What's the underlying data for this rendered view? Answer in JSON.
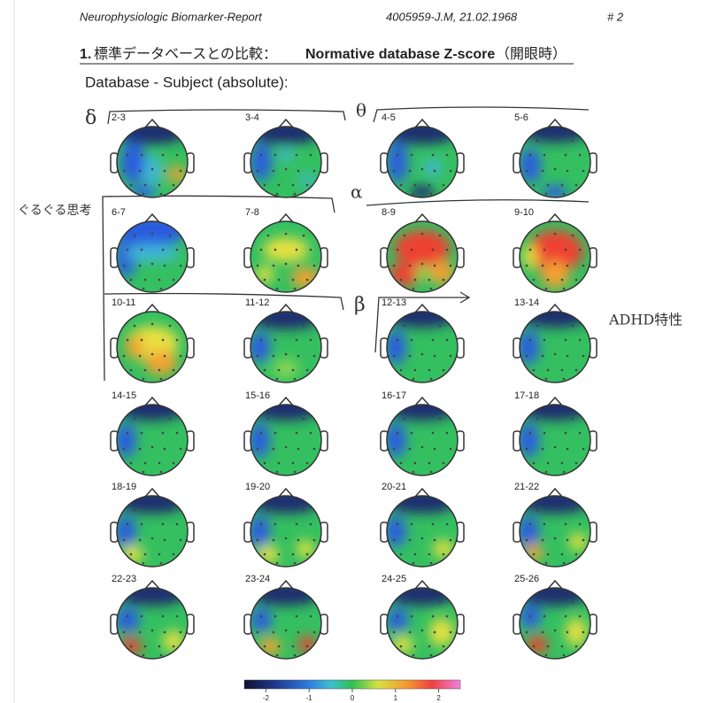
{
  "header": {
    "left": "Neurophysiologic Biomarker-Report",
    "center": "4005959-J.M, 21.02.1968",
    "right": "# 2"
  },
  "section": {
    "number": "1.",
    "title_jp": "標準データベースとの比較：",
    "title_en": "Normative database Z-score",
    "title_suffix": "（開眼時）"
  },
  "subtitle": "Database - Subject (absolute):",
  "maps": [
    "2-3",
    "3-4",
    "4-5",
    "5-6",
    "6-7",
    "7-8",
    "8-9",
    "9-10",
    "10-11",
    "11-12",
    "12-13",
    "13-14",
    "14-15",
    "15-16",
    "16-17",
    "17-18",
    "18-19",
    "19-20",
    "20-21",
    "21-22",
    "22-23",
    "23-24",
    "24-25",
    "25-26"
  ],
  "annotations": {
    "delta": "δ",
    "theta": "θ",
    "alpha": "α",
    "beta": "β",
    "left": "ぐるぐる思考",
    "right": "ADHD特性"
  },
  "colorbar": {
    "lim": [
      -2.5,
      2.5
    ],
    "ticks": [
      -2,
      -1,
      0,
      1,
      2
    ]
  }
}
